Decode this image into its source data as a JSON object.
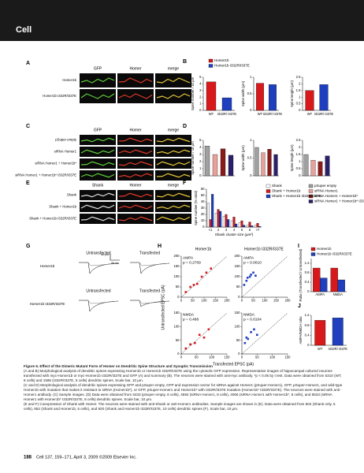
{
  "page": {
    "header": "Cell",
    "panel_letters": [
      "A",
      "B",
      "C",
      "D",
      "E",
      "F",
      "G",
      "H",
      "I",
      "J"
    ],
    "a": {
      "headers": [
        "GFP",
        "Homer",
        "merge"
      ],
      "rows": [
        "Homer1b",
        "Homer1b I332R/I337E"
      ]
    },
    "c": {
      "headers": [
        "GFP",
        "Homer",
        "merge"
      ],
      "rows": [
        "pSuper empty",
        "siRNA Homer1",
        "siRNA Homer1 + Homer1b*",
        "siRNA Homer1 + Homer1b* I332R/I337E"
      ]
    },
    "e": {
      "headers": [
        "Shank",
        "Homer",
        "merge"
      ],
      "rows": [
        "Shank",
        "Shank + Homer1b",
        "Shank + Homer1b I332R/I337E"
      ]
    },
    "g": {
      "headers": [
        "Untransfected",
        "Transfected"
      ],
      "rows": [
        "Homer1b",
        "Homer1b I332R/I337E"
      ],
      "scale_y": "50 pA",
      "scale_x": "20 ms"
    },
    "h": {
      "columns": [
        "Homer1b",
        "Homer1b I332R/I337E"
      ],
      "ylabel": "Untransfected EPSC (pA)",
      "xlabel": "Transfected EPSC (pA)"
    },
    "caption": {
      "title": "Figure 6. Effect of the Dimeric Mutant Form of Homer on Dendritic Spine Structure and Synaptic Transmission",
      "paragraphs": [
        "(A and B) Morphological analysis of dendritic spines expressing Homer1b or Homer1b I332R/I337E using the cytosolic GFP expression. Representative images of hippocampal cultured neurons transfected with myc-Homer1b or myc-Homer1b I332R/I337E and GFP (A) and summary (B). The neurons were stained with anti-myc antibody. *p < 0.05 by t test. Data were obtained from 5310 (WT, 8 cells) and 1595 (I332R/I337E, 5 cells) dendritic spines. Scale bar, 10 μm.",
        "(C and D) Morphological analysis of dendritic spines expressing GFP and pSuper empty, GFP and expression vector for siRNA against Homer1 (pSuper-Homer1), GFP, pSuper-Homer1, and wild-type Homer1b with mutation that makes it resistant to siRNA (Homer1b*), or GFP, pSuper-Homer1 and Homer1b* with I332R/I337E mutation (Homer1b* I332R/I337E). The neurons were stained with anti-Homer1 antibody. (C) Sample images. (D) Data were obtained from 3433 (pSuper empty, 6 cells), 4592 (siRNA Homer1, 8 cells), 4066 (siRNA Homer1 with Homer1b*, 8 cells), and 5533 (siRNA Homer1 with Homer1b* I332R/I337E, 8 cells) dendritic spines. Scale bar, 10 μm.",
        "(E and F) Coexpression of Shank with Homer. The neurons were stained with anti-Shank or anti-Homer1 antibodies. Sample images are shown in (E). Data were obtained from 804 (Shank only, 5 cells), 852 (Shank and Homer1b, 5 cells), and 920 (Shank and Homer1b I332R/I337E, 10 cells) dendritic spines (F). Scale bar, 10 μm."
      ]
    },
    "footer": {
      "page_number": "188",
      "citation": "Cell 137, 159–171, April 3, 2009 ©2009 Elsevier Inc."
    }
  },
  "chart_data": [
    {
      "type": "bar",
      "ylabel": "Spine number / 10 μm",
      "categories": [
        "WT",
        "I332R/ I337E"
      ],
      "values": [
        4.3,
        1.9
      ],
      "colors": [
        "#d7191c",
        "#1f3fbf"
      ],
      "ylim": [
        0,
        5
      ],
      "yticks": [
        0,
        1,
        2,
        3,
        4,
        5
      ],
      "legend": [
        "Homer1b",
        "Homer1b I332R/I337E"
      ]
    },
    {
      "type": "bar",
      "ylabel": "Spine width (μm)",
      "categories": [
        "WT",
        "I332R/ I337E"
      ],
      "values": [
        0.82,
        0.78
      ],
      "colors": [
        "#d7191c",
        "#1f3fbf"
      ],
      "ylim": [
        0,
        1
      ],
      "yticks": [
        0,
        0.5,
        1
      ]
    },
    {
      "type": "bar",
      "ylabel": "Spine length (μm)",
      "categories": [
        "WT",
        "I332R/ I337E"
      ],
      "values": [
        1.5,
        1.95
      ],
      "colors": [
        "#d7191c",
        "#1f3fbf"
      ],
      "ylim": [
        0,
        2.5
      ],
      "yticks": [
        0,
        0.5,
        1,
        1.5,
        2,
        2.5
      ]
    },
    {
      "type": "bar",
      "ylabel": "Spine number / 10 μm",
      "values": [
        4.2,
        3.0,
        3.8,
        2.9
      ],
      "colors": [
        "#a0a0a0",
        "#e8a09a",
        "#8b1a1a",
        "#2a1f6a"
      ],
      "ylim": [
        0,
        5
      ],
      "yticks": [
        0,
        1,
        2,
        3,
        4,
        5
      ],
      "legend": [
        "pSuper empty",
        "siRNA Homer1",
        "siRNA Homer1 + Homer1b*",
        "siRNA Homer1 + Homer1b* I332R/I337E"
      ]
    },
    {
      "type": "bar",
      "ylabel": "Spine width (μm)",
      "values": [
        0.8,
        0.65,
        0.75,
        0.6
      ],
      "colors": [
        "#a0a0a0",
        "#e8a09a",
        "#8b1a1a",
        "#2a1f6a"
      ],
      "ylim": [
        0,
        1
      ],
      "yticks": [
        0,
        0.5,
        1
      ]
    },
    {
      "type": "bar",
      "ylabel": "Spine length (μm)",
      "values": [
        1.5,
        1.1,
        1.0,
        1.4
      ],
      "colors": [
        "#a0a0a0",
        "#e8a09a",
        "#8b1a1a",
        "#2a1f6a"
      ],
      "ylim": [
        0,
        2.5
      ],
      "yticks": [
        0,
        0.5,
        1,
        1.5,
        2,
        2.5
      ]
    },
    {
      "type": "bar",
      "ylabel": "Spine number (% total)",
      "xlabel": "Shank cluster size (μm²)",
      "categories": [
        "<1",
        "2",
        "3",
        "4",
        "5",
        "6",
        ">7"
      ],
      "series": [
        {
          "name": "Shank",
          "color": "#ffffff",
          "values": [
            38,
            22,
            17,
            10,
            7,
            3,
            3
          ]
        },
        {
          "name": "Shank + Homer1b",
          "color": "#d7191c",
          "values": [
            12,
            28,
            20,
            16,
            10,
            8,
            6
          ]
        },
        {
          "name": "Shank + Homer1b I332R/I337E",
          "color": "#1f3fbf",
          "values": [
            52,
            25,
            12,
            5,
            3,
            2,
            1
          ]
        }
      ],
      "ylim": [
        0,
        60
      ],
      "yticks": [
        0,
        10,
        20,
        30,
        40,
        50,
        60
      ]
    },
    {
      "type": "bar",
      "ylabel": "Ratio (Transfected / Untransfected)",
      "categories": [
        "AMPA",
        "NMDA"
      ],
      "series": [
        {
          "name": "Homer1b",
          "color": "#d7191c",
          "values": [
            1.0,
            1.0
          ]
        },
        {
          "name": "Homer1b I332R/I337E",
          "color": "#1f3fbf",
          "values": [
            0.58,
            0.5
          ]
        }
      ],
      "ylim": [
        0,
        1.4
      ],
      "yticks": [
        0,
        0.4,
        0.8,
        1.2
      ]
    },
    {
      "type": "bar",
      "ylabel": "AMPA/NMDA ratio",
      "categories": [
        "WT",
        "I332R/ I337E"
      ],
      "values": [
        1.0,
        1.1
      ],
      "colors": [
        "#d7191c",
        "#1f3fbf"
      ],
      "ylim": [
        0,
        1.2
      ],
      "yticks": [
        0,
        0.4,
        0.8,
        1.2
      ]
    },
    {
      "type": "scatter",
      "title": "AMPA",
      "annotation": "p = 0.2709",
      "color": "#d7191c",
      "x": [
        20,
        40,
        55,
        70,
        90,
        110,
        130
      ],
      "y": [
        25,
        50,
        60,
        65,
        100,
        120,
        140
      ],
      "xlim": [
        0,
        200
      ],
      "xticks": [
        0,
        50,
        100,
        150,
        200
      ],
      "ylim": [
        0,
        200
      ],
      "yticks": [
        0,
        50,
        100,
        150,
        200
      ]
    },
    {
      "type": "scatter",
      "title": "AMPA",
      "annotation": "p = 0.0010",
      "color": "#1f3fbf",
      "x": [
        10,
        20,
        25,
        35,
        40,
        50,
        60
      ],
      "y": [
        60,
        80,
        95,
        100,
        110,
        120,
        105
      ],
      "xlim": [
        0,
        200
      ],
      "xticks": [
        0,
        50,
        100,
        150,
        200
      ],
      "ylim": [
        0,
        200
      ],
      "yticks": [
        0,
        50,
        100,
        150,
        200
      ]
    },
    {
      "type": "scatter",
      "title": "NMDA",
      "annotation": "p = 0.488",
      "color": "#d7191c",
      "x": [
        15,
        30,
        45,
        60,
        75,
        90
      ],
      "y": [
        20,
        35,
        40,
        70,
        60,
        90
      ],
      "xlim": [
        0,
        150
      ],
      "xticks": [
        0,
        50,
        100,
        150
      ],
      "ylim": [
        0,
        150
      ],
      "yticks": [
        0,
        50,
        100,
        150
      ]
    },
    {
      "type": "scatter",
      "title": "NMDA",
      "annotation": "p = 0.0104",
      "color": "#1f3fbf",
      "x": [
        10,
        15,
        20,
        30,
        40,
        50
      ],
      "y": [
        40,
        60,
        55,
        80,
        90,
        70
      ],
      "xlim": [
        0,
        150
      ],
      "xticks": [
        0,
        50,
        100,
        150
      ],
      "ylim": [
        0,
        150
      ],
      "yticks": [
        0,
        50,
        100,
        150
      ]
    }
  ]
}
